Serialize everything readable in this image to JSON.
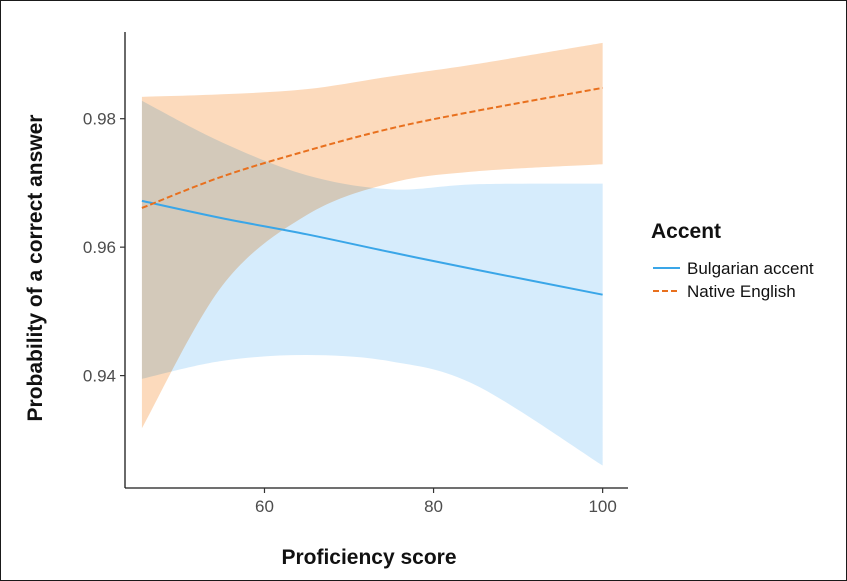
{
  "chart_data": {
    "type": "line",
    "xlabel": "Proficiency score",
    "ylabel": "Probability of a correct answer",
    "xlim": [
      43.5,
      103
    ],
    "ylim": [
      0.9225,
      0.9935
    ],
    "x_ticks": [
      60,
      80,
      100
    ],
    "y_ticks": [
      0.94,
      0.96,
      0.98
    ],
    "x_tick_labels": [
      "60",
      "80",
      "100"
    ],
    "y_tick_labels": [
      "0.94",
      "0.96",
      "0.98"
    ],
    "grid": false,
    "legend": {
      "title": "Accent",
      "position": "right"
    },
    "series": [
      {
        "name": "Bulgarian accent",
        "color": "#3aa6e8",
        "ribbon_color": "#cfe9fb",
        "line_style": "solid",
        "x": [
          45.5,
          55,
          65,
          75,
          85,
          100
        ],
        "y": [
          0.9672,
          0.9645,
          0.962,
          0.9592,
          0.9565,
          0.9526
        ],
        "lower": [
          0.9395,
          0.9423,
          0.9432,
          0.9422,
          0.9385,
          0.926
        ],
        "upper": [
          0.9828,
          0.9763,
          0.9712,
          0.969,
          0.9698,
          0.9699
        ]
      },
      {
        "name": "Native English",
        "color": "#e8701e",
        "ribbon_color": "#fbd3b0",
        "line_style": "dashed",
        "x": [
          45.5,
          55,
          65,
          75,
          85,
          100
        ],
        "y": [
          0.9661,
          0.971,
          0.975,
          0.9785,
          0.9812,
          0.9848
        ],
        "lower": [
          0.9318,
          0.954,
          0.965,
          0.97,
          0.9718,
          0.9729
        ],
        "upper": [
          0.9834,
          0.9838,
          0.9846,
          0.9866,
          0.9885,
          0.9918
        ]
      }
    ]
  }
}
